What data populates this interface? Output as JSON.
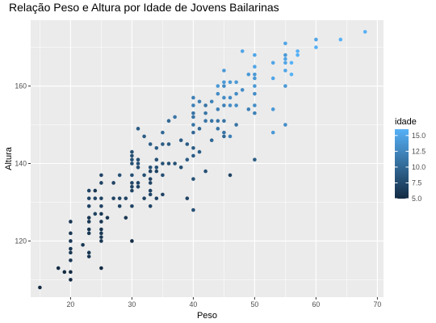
{
  "chart_data": {
    "type": "scatter",
    "title": "Relação Peso e Altura por Idade de Jovens Bailarinas",
    "xlabel": "Peso",
    "ylabel": "Altura",
    "xlim": [
      13.5,
      71
    ],
    "ylim": [
      105.5,
      177
    ],
    "x_ticks": [
      20,
      30,
      40,
      50,
      60,
      70
    ],
    "y_ticks": [
      120,
      140,
      160
    ],
    "grid": true,
    "panel_background": "#ebebeb",
    "grid_color": "#ffffff",
    "legend": {
      "title": "idade",
      "position": "right",
      "range": [
        5,
        16
      ],
      "ticks": [
        5.0,
        7.5,
        10.0,
        12.5,
        15.0
      ],
      "tick_labels": [
        "5.0",
        "7.5",
        "10.0",
        "12.5",
        "15.0"
      ],
      "color_low": "#132b43",
      "color_high": "#56b1f7"
    },
    "points": [
      [
        15,
        108,
        5
      ],
      [
        18,
        113,
        5
      ],
      [
        19,
        112,
        5
      ],
      [
        20,
        112,
        5
      ],
      [
        20,
        110,
        5
      ],
      [
        20,
        115,
        6
      ],
      [
        20,
        117,
        6
      ],
      [
        20,
        118,
        6
      ],
      [
        20,
        120,
        6
      ],
      [
        20,
        122,
        6
      ],
      [
        20,
        125,
        6
      ],
      [
        22,
        119,
        6
      ],
      [
        23,
        116,
        6
      ],
      [
        23,
        117,
        6
      ],
      [
        23,
        122,
        6
      ],
      [
        23,
        123,
        6
      ],
      [
        23,
        125,
        6
      ],
      [
        23,
        126,
        6
      ],
      [
        23,
        129,
        7
      ],
      [
        23,
        131,
        7
      ],
      [
        23,
        133,
        7
      ],
      [
        24,
        131,
        7
      ],
      [
        24,
        127,
        7
      ],
      [
        24,
        133,
        6
      ],
      [
        25,
        113,
        5
      ],
      [
        25,
        120,
        6
      ],
      [
        25,
        121,
        6
      ],
      [
        25,
        122,
        6
      ],
      [
        25,
        123,
        6
      ],
      [
        25,
        125,
        6
      ],
      [
        25,
        127,
        6
      ],
      [
        25,
        129,
        7
      ],
      [
        25,
        131,
        7
      ],
      [
        25,
        135,
        7
      ],
      [
        25,
        137,
        7
      ],
      [
        26,
        126,
        6
      ],
      [
        27,
        131,
        7
      ],
      [
        27,
        135,
        7
      ],
      [
        28,
        129,
        7
      ],
      [
        28,
        131,
        7
      ],
      [
        28,
        137,
        8
      ],
      [
        29,
        126,
        6
      ],
      [
        29,
        131,
        7
      ],
      [
        30,
        120,
        5
      ],
      [
        30,
        129,
        7
      ],
      [
        30,
        133,
        7
      ],
      [
        30,
        134,
        7
      ],
      [
        30,
        135,
        7
      ],
      [
        30,
        137,
        8
      ],
      [
        30,
        140,
        8
      ],
      [
        30,
        141,
        8
      ],
      [
        30,
        142,
        8
      ],
      [
        30,
        143,
        8
      ],
      [
        31,
        134,
        7
      ],
      [
        31,
        135,
        7
      ],
      [
        31,
        139,
        8
      ],
      [
        31,
        140,
        8
      ],
      [
        31,
        141,
        8
      ],
      [
        31,
        149,
        9
      ],
      [
        32,
        131,
        7
      ],
      [
        32,
        137,
        8
      ],
      [
        32,
        147,
        9
      ],
      [
        33,
        129,
        7
      ],
      [
        33,
        132,
        7
      ],
      [
        33,
        133,
        7
      ],
      [
        33,
        135,
        7
      ],
      [
        33,
        136,
        7
      ],
      [
        33,
        138,
        7
      ],
      [
        33,
        139,
        8
      ],
      [
        33,
        145,
        9
      ],
      [
        34,
        131,
        7
      ],
      [
        34,
        138,
        7
      ],
      [
        34,
        139,
        8
      ],
      [
        34,
        141,
        8
      ],
      [
        34,
        144,
        9
      ],
      [
        35,
        132,
        7
      ],
      [
        35,
        137,
        8
      ],
      [
        35,
        140,
        8
      ],
      [
        35,
        145,
        9
      ],
      [
        35,
        148,
        10
      ],
      [
        36,
        140,
        8
      ],
      [
        36,
        145,
        9
      ],
      [
        36,
        151,
        10
      ],
      [
        37,
        140,
        8
      ],
      [
        37,
        152,
        11
      ],
      [
        38,
        139,
        8
      ],
      [
        38,
        146,
        9
      ],
      [
        39,
        131,
        7
      ],
      [
        39,
        141,
        9
      ],
      [
        39,
        145,
        9
      ],
      [
        40,
        128,
        8
      ],
      [
        40,
        136,
        8
      ],
      [
        40,
        142,
        9
      ],
      [
        40,
        144,
        9
      ],
      [
        40,
        148,
        10
      ],
      [
        40,
        150,
        11
      ],
      [
        40,
        152,
        11
      ],
      [
        40,
        153,
        11
      ],
      [
        40,
        155,
        12
      ],
      [
        40,
        157,
        12
      ],
      [
        41,
        143,
        9
      ],
      [
        41,
        149,
        10
      ],
      [
        41,
        156,
        12
      ],
      [
        42,
        138,
        8
      ],
      [
        42,
        151,
        11
      ],
      [
        42,
        153,
        11
      ],
      [
        42,
        155,
        11
      ],
      [
        43,
        146,
        10
      ],
      [
        43,
        151,
        11
      ],
      [
        43,
        156,
        12
      ],
      [
        44,
        149,
        11
      ],
      [
        44,
        151,
        11
      ],
      [
        44,
        154,
        12
      ],
      [
        44,
        158,
        13
      ],
      [
        44,
        160,
        14
      ],
      [
        45,
        147,
        10
      ],
      [
        45,
        148,
        11
      ],
      [
        45,
        151,
        11
      ],
      [
        45,
        155,
        12
      ],
      [
        45,
        157,
        13
      ],
      [
        45,
        160,
        13
      ],
      [
        45,
        161,
        14
      ],
      [
        45,
        164,
        14
      ],
      [
        46,
        137,
        7
      ],
      [
        46,
        147,
        12
      ],
      [
        46,
        155,
        13
      ],
      [
        46,
        157,
        13
      ],
      [
        46,
        161,
        14
      ],
      [
        47,
        150,
        11
      ],
      [
        47,
        155,
        13
      ],
      [
        47,
        158,
        13
      ],
      [
        47,
        161,
        14
      ],
      [
        48,
        159,
        13
      ],
      [
        48,
        169,
        15
      ],
      [
        49,
        154,
        12
      ],
      [
        49,
        163,
        14
      ],
      [
        50,
        141,
        9
      ],
      [
        50,
        153,
        12
      ],
      [
        50,
        155,
        13
      ],
      [
        50,
        158,
        13
      ],
      [
        50,
        160,
        14
      ],
      [
        50,
        162,
        14
      ],
      [
        50,
        163,
        14
      ],
      [
        50,
        165,
        15
      ],
      [
        50,
        168,
        15
      ],
      [
        53,
        148,
        14
      ],
      [
        53,
        154,
        14
      ],
      [
        53,
        162,
        15
      ],
      [
        53,
        166,
        15
      ],
      [
        55,
        150,
        13
      ],
      [
        55,
        160,
        14
      ],
      [
        55,
        164,
        15
      ],
      [
        55,
        166,
        15
      ],
      [
        55,
        167,
        15
      ],
      [
        55,
        168,
        14
      ],
      [
        55,
        171,
        15
      ],
      [
        56,
        163,
        16
      ],
      [
        56,
        166,
        16
      ],
      [
        57,
        168,
        16
      ],
      [
        57,
        169,
        16
      ],
      [
        60,
        170,
        16
      ],
      [
        60,
        172,
        15
      ],
      [
        64,
        172,
        16
      ],
      [
        68,
        174,
        16
      ]
    ]
  }
}
